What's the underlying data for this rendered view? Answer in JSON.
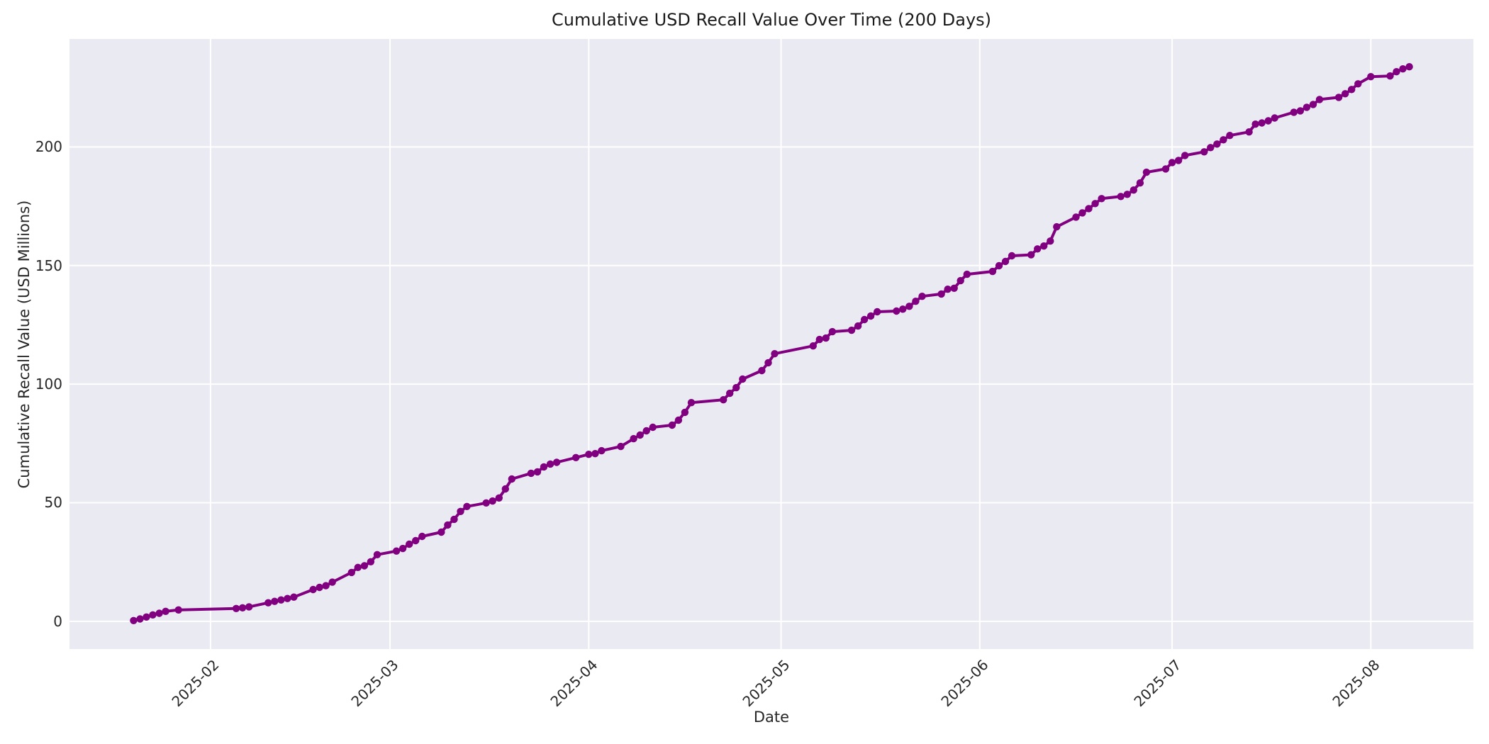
{
  "chart_data": {
    "type": "line",
    "title": "Cumulative USD Recall Value Over Time (200 Days)",
    "xlabel": "Date",
    "ylabel": "Cumulative Recall Value (USD Millions)",
    "legend": false,
    "grid": true,
    "x_start": "2025-01-20",
    "xlim_days": [
      -10,
      209
    ],
    "ylim": [
      -11.7,
      245.5
    ],
    "yticks": [
      0,
      50,
      100,
      150,
      200
    ],
    "xticks": [
      {
        "label": "2025-02",
        "date": "2025-02-01"
      },
      {
        "label": "2025-03",
        "date": "2025-03-01"
      },
      {
        "label": "2025-04",
        "date": "2025-04-01"
      },
      {
        "label": "2025-05",
        "date": "2025-05-01"
      },
      {
        "label": "2025-06",
        "date": "2025-06-01"
      },
      {
        "label": "2025-07",
        "date": "2025-07-01"
      },
      {
        "label": "2025-08",
        "date": "2025-08-01"
      }
    ],
    "colors": {
      "line": "#800080",
      "marker": "#800080",
      "axes_background": "#eaeaf2",
      "grid": "#ffffff",
      "text": "#262626"
    },
    "marker_style": "circle",
    "series": [
      {
        "name": "Cumulative recall value",
        "x": [
          "2025-01-20",
          "2025-01-21",
          "2025-01-22",
          "2025-01-23",
          "2025-01-24",
          "2025-01-25",
          "2025-01-27",
          "2025-02-05",
          "2025-02-06",
          "2025-02-07",
          "2025-02-10",
          "2025-02-11",
          "2025-02-12",
          "2025-02-13",
          "2025-02-14",
          "2025-02-17",
          "2025-02-18",
          "2025-02-19",
          "2025-02-20",
          "2025-02-23",
          "2025-02-24",
          "2025-02-25",
          "2025-02-26",
          "2025-02-27",
          "2025-03-02",
          "2025-03-03",
          "2025-03-04",
          "2025-03-05",
          "2025-03-06",
          "2025-03-09",
          "2025-03-10",
          "2025-03-11",
          "2025-03-12",
          "2025-03-13",
          "2025-03-16",
          "2025-03-17",
          "2025-03-18",
          "2025-03-19",
          "2025-03-20",
          "2025-03-23",
          "2025-03-24",
          "2025-03-25",
          "2025-03-26",
          "2025-03-27",
          "2025-03-30",
          "2025-04-01",
          "2025-04-02",
          "2025-04-03",
          "2025-04-06",
          "2025-04-08",
          "2025-04-09",
          "2025-04-10",
          "2025-04-11",
          "2025-04-14",
          "2025-04-15",
          "2025-04-16",
          "2025-04-17",
          "2025-04-22",
          "2025-04-23",
          "2025-04-24",
          "2025-04-25",
          "2025-04-28",
          "2025-04-29",
          "2025-04-30",
          "2025-05-06",
          "2025-05-07",
          "2025-05-08",
          "2025-05-09",
          "2025-05-12",
          "2025-05-13",
          "2025-05-14",
          "2025-05-15",
          "2025-05-16",
          "2025-05-19",
          "2025-05-20",
          "2025-05-21",
          "2025-05-22",
          "2025-05-23",
          "2025-05-26",
          "2025-05-27",
          "2025-05-28",
          "2025-05-29",
          "2025-05-30",
          "2025-06-03",
          "2025-06-04",
          "2025-06-05",
          "2025-06-06",
          "2025-06-09",
          "2025-06-10",
          "2025-06-11",
          "2025-06-12",
          "2025-06-13",
          "2025-06-16",
          "2025-06-17",
          "2025-06-18",
          "2025-06-19",
          "2025-06-20",
          "2025-06-23",
          "2025-06-24",
          "2025-06-25",
          "2025-06-26",
          "2025-06-27",
          "2025-06-30",
          "2025-07-01",
          "2025-07-02",
          "2025-07-03",
          "2025-07-06",
          "2025-07-07",
          "2025-07-08",
          "2025-07-09",
          "2025-07-10",
          "2025-07-13",
          "2025-07-14",
          "2025-07-15",
          "2025-07-16",
          "2025-07-17",
          "2025-07-20",
          "2025-07-21",
          "2025-07-22",
          "2025-07-23",
          "2025-07-24",
          "2025-07-27",
          "2025-07-28",
          "2025-07-29",
          "2025-07-30",
          "2025-08-01",
          "2025-08-04",
          "2025-08-05",
          "2025-08-06",
          "2025-08-07"
        ],
        "y": [
          0.3,
          1.0,
          1.8,
          2.7,
          3.4,
          4.2,
          4.8,
          5.4,
          5.7,
          6.1,
          7.8,
          8.4,
          9.0,
          9.6,
          10.2,
          13.4,
          14.3,
          15.0,
          16.5,
          20.6,
          22.7,
          23.4,
          25.1,
          28.1,
          29.6,
          30.7,
          32.5,
          34.0,
          35.8,
          37.6,
          40.6,
          43.0,
          46.3,
          48.4,
          49.9,
          50.7,
          52.0,
          55.8,
          60.0,
          62.4,
          63.0,
          65.1,
          66.3,
          67.0,
          69.0,
          70.4,
          70.7,
          71.9,
          73.7,
          77.0,
          78.5,
          80.3,
          81.8,
          82.7,
          84.8,
          88.1,
          92.2,
          93.4,
          96.1,
          98.5,
          102.1,
          105.7,
          109.0,
          112.8,
          116.1,
          118.8,
          119.4,
          122.1,
          122.7,
          124.5,
          127.2,
          128.7,
          130.5,
          130.8,
          131.6,
          132.8,
          134.9,
          137.0,
          138.0,
          140.0,
          140.4,
          143.6,
          146.3,
          147.5,
          149.9,
          151.7,
          154.1,
          154.5,
          157.0,
          158.2,
          160.3,
          166.3,
          170.4,
          172.2,
          174.0,
          176.1,
          178.2,
          179.1,
          180.0,
          181.8,
          184.8,
          189.3,
          190.7,
          193.4,
          194.3,
          196.4,
          197.9,
          199.7,
          201.2,
          203.0,
          204.8,
          206.3,
          209.6,
          210.1,
          211.0,
          212.2,
          214.6,
          215.2,
          216.7,
          217.9,
          220.0,
          220.9,
          222.4,
          224.2,
          226.6,
          229.6,
          229.9,
          231.7,
          232.9,
          233.8
        ]
      }
    ]
  }
}
